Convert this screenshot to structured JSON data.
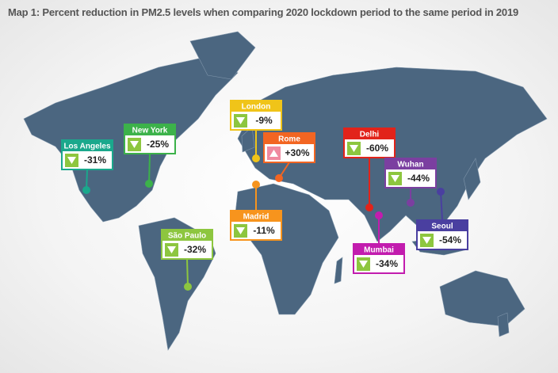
{
  "title": "Map 1: Percent reduction in PM2.5 levels when comparing 2020 lockdown period to the same period in 2019",
  "callouts": [
    {
      "city": "Los Angeles",
      "label": "-31%",
      "direction": "down",
      "color": "#1aa88c"
    },
    {
      "city": "New York",
      "label": "-25%",
      "direction": "down",
      "color": "#3cb24a"
    },
    {
      "city": "London",
      "label": "-9%",
      "direction": "down",
      "color": "#f0c419"
    },
    {
      "city": "Rome",
      "label": "+30%",
      "direction": "up",
      "color": "#f26522"
    },
    {
      "city": "Madrid",
      "label": "-11%",
      "direction": "down",
      "color": "#f7941d"
    },
    {
      "city": "São Paulo",
      "label": "-32%",
      "direction": "down",
      "color": "#8dc63f"
    },
    {
      "city": "Delhi",
      "label": "-60%",
      "direction": "down",
      "color": "#e2231a"
    },
    {
      "city": "Wuhan",
      "label": "-44%",
      "direction": "down",
      "color": "#7b3fa0"
    },
    {
      "city": "Mumbai",
      "label": "-34%",
      "direction": "down",
      "color": "#c21cae"
    },
    {
      "city": "Seoul",
      "label": "-54%",
      "direction": "down",
      "color": "#4a3fa0"
    }
  ]
}
